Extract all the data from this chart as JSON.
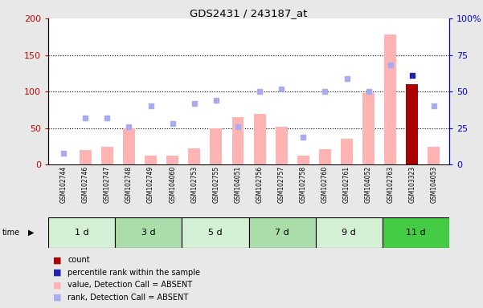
{
  "title": "GDS2431 / 243187_at",
  "samples": [
    "GSM102744",
    "GSM102746",
    "GSM102747",
    "GSM102748",
    "GSM102749",
    "GSM104060",
    "GSM102753",
    "GSM102755",
    "GSM104051",
    "GSM102756",
    "GSM102757",
    "GSM102758",
    "GSM102760",
    "GSM102761",
    "GSM104052",
    "GSM102763",
    "GSM103323",
    "GSM104053"
  ],
  "time_groups": [
    {
      "label": "1 d",
      "start": 0,
      "end": 3,
      "color": "#d4f0d4"
    },
    {
      "label": "3 d",
      "start": 3,
      "end": 6,
      "color": "#aaddaa"
    },
    {
      "label": "5 d",
      "start": 6,
      "end": 9,
      "color": "#d4f0d4"
    },
    {
      "label": "7 d",
      "start": 9,
      "end": 12,
      "color": "#aaddaa"
    },
    {
      "label": "9 d",
      "start": 12,
      "end": 15,
      "color": "#d4f0d4"
    },
    {
      "label": "11 d",
      "start": 15,
      "end": 18,
      "color": "#44cc44"
    }
  ],
  "bar_values_absent": [
    0,
    20,
    25,
    50,
    13,
    13,
    22,
    50,
    65,
    70,
    52,
    13,
    21,
    36,
    98,
    178,
    0,
    25
  ],
  "rank_absent": [
    8,
    32,
    32,
    26,
    40,
    28,
    42,
    44,
    26,
    50,
    52,
    19,
    50,
    59,
    50,
    68,
    0,
    40
  ],
  "bar_value_present": 110,
  "bar_index_present": 16,
  "rank_present": 61,
  "rank_index_present": 16,
  "ylim_left": [
    0,
    200
  ],
  "ylim_right": [
    0,
    100
  ],
  "grid_values": [
    50,
    100,
    150
  ],
  "bar_color_absent": "#ffb3b3",
  "bar_color_present": "#aa0000",
  "rank_color_absent": "#aaaaee",
  "rank_color_present": "#2222aa",
  "bg_color_plot": "#ffffff",
  "fig_bg_color": "#e8e8e8",
  "tick_color_left": "#cc0000",
  "tick_color_right": "#0000cc",
  "left_yticks": [
    0,
    50,
    100,
    150,
    200
  ],
  "right_yticks": [
    0,
    25,
    50,
    75,
    100
  ],
  "right_yticklabels": [
    "0",
    "25",
    "50",
    "75",
    "100%"
  ]
}
